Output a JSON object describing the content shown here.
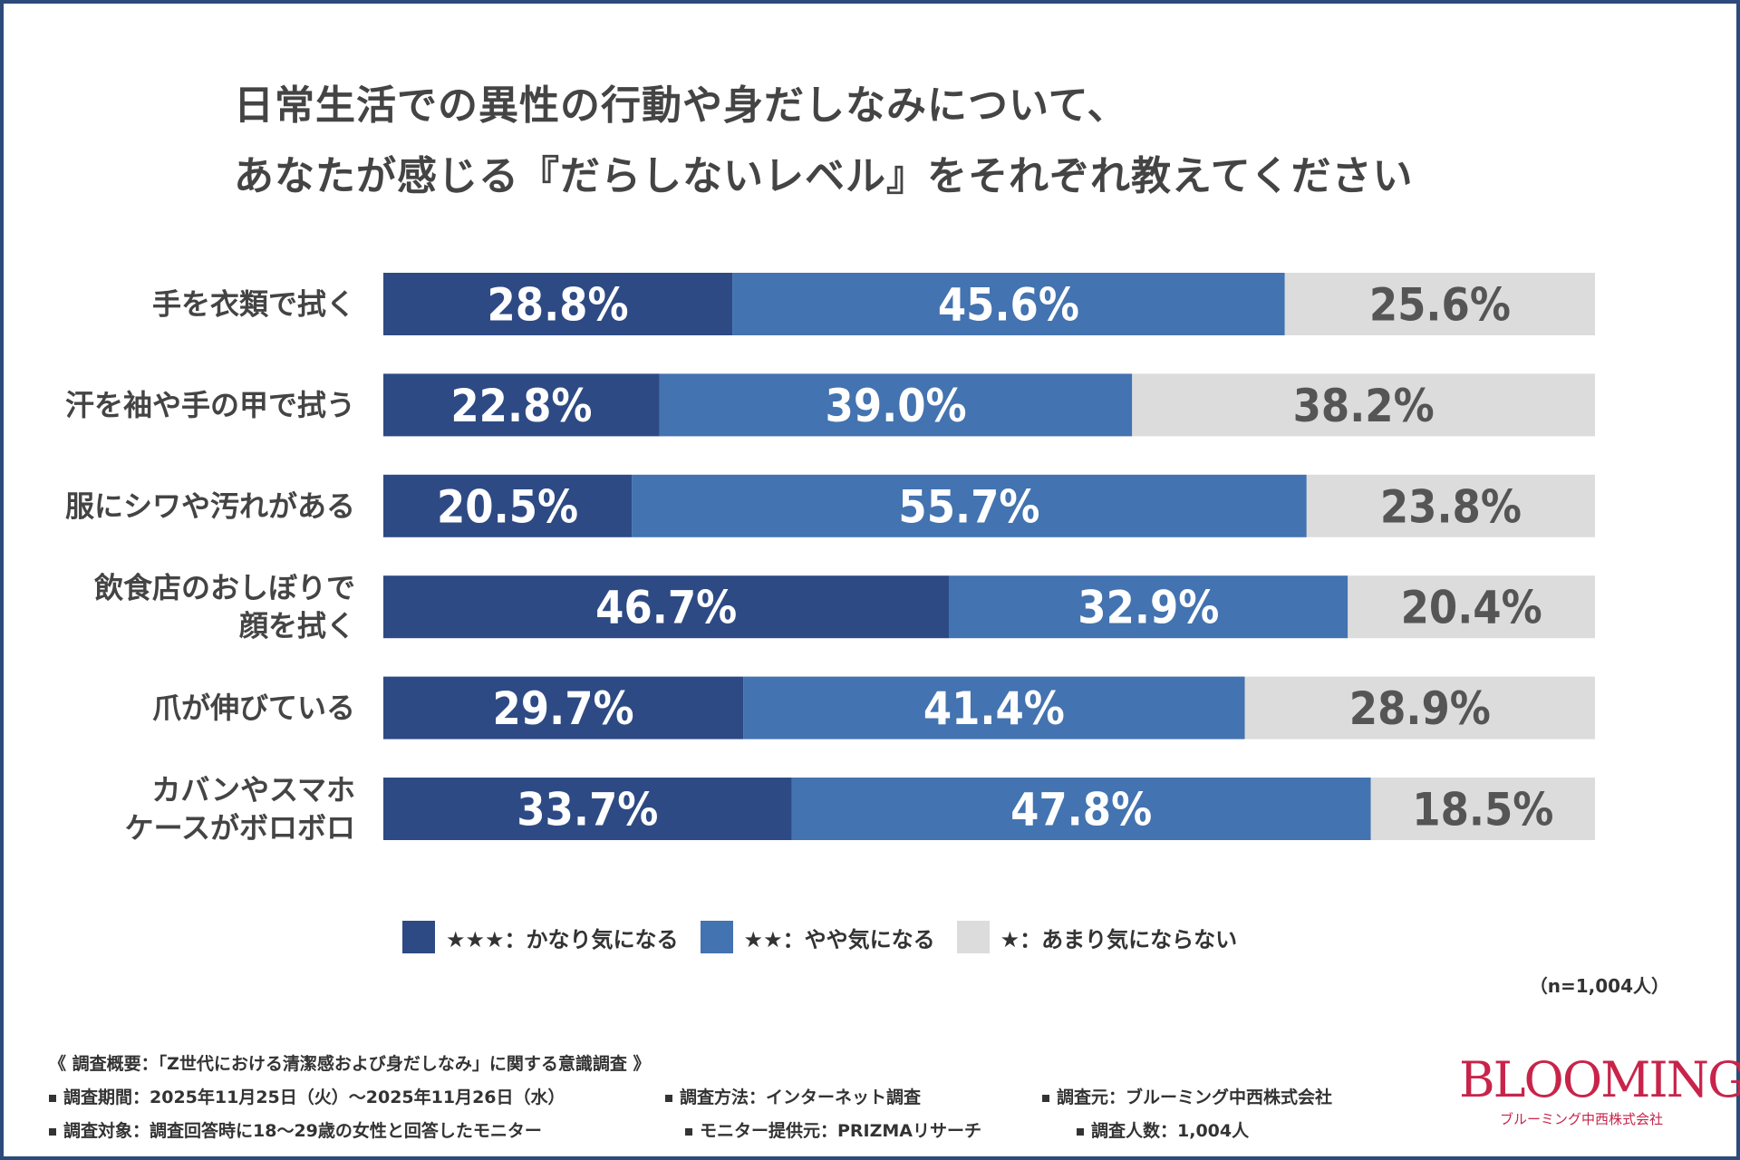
{
  "title": {
    "line1": "日常生活での異性の行動や身だしなみについて、",
    "line2": "あなたが感じる『だらしないレベル』をそれぞれ教えてください"
  },
  "colors": {
    "series1": "#2d4a84",
    "series2": "#4373b0",
    "series3": "#dcdcdc",
    "label_light": "#ffffff",
    "label_dark": "#555555"
  },
  "chart_data": {
    "type": "bar",
    "orientation": "horizontal-stacked-100",
    "categories": [
      [
        "手を衣類で拭く"
      ],
      [
        "汗を袖や手の甲で拭う"
      ],
      [
        "服にシワや汚れがある"
      ],
      [
        "飲食店のおしぼりで",
        "顔を拭く"
      ],
      [
        "爪が伸びている"
      ],
      [
        "カバンやスマホ",
        "ケースがボロボロ"
      ]
    ],
    "series": [
      {
        "name": "★★★：かなり気になる",
        "values": [
          28.8,
          22.8,
          20.5,
          46.7,
          29.7,
          33.7
        ],
        "labels": [
          "28.8%",
          "22.8%",
          "20.5%",
          "46.7%",
          "29.7%",
          "33.7%"
        ]
      },
      {
        "name": "★★：やや気になる",
        "values": [
          45.6,
          39.0,
          55.7,
          32.9,
          41.4,
          47.8
        ],
        "labels": [
          "45.6%",
          "39.0%",
          "55.7%",
          "32.9%",
          "41.4%",
          "47.8%"
        ]
      },
      {
        "name": "★：あまり気にならない",
        "values": [
          25.6,
          38.2,
          23.8,
          20.4,
          28.9,
          18.5
        ],
        "labels": [
          "25.6%",
          "38.2%",
          "23.8%",
          "20.4%",
          "28.9%",
          "18.5%"
        ]
      }
    ],
    "xlim": [
      0,
      100
    ],
    "legend": "bottom"
  },
  "n_label": "（n=1,004人）",
  "survey": {
    "heading": "《 調査概要：「Z世代における清潔感および身だしなみ」に関する意識調査 》",
    "period": "調査期間：2025年11月25日（火）～2025年11月26日（水）",
    "method": "調査方法：インターネット調査",
    "source": "調査元：ブルーミング中西株式会社",
    "target": "調査対象：調査回答時に18～29歳の女性と回答したモニター",
    "provider": "モニター提供元：PRIZMAリサーチ",
    "count": "調査人数：1,004人"
  },
  "logo": {
    "main": "BLOOMING",
    "sub": "ブルーミング中西株式会社"
  }
}
